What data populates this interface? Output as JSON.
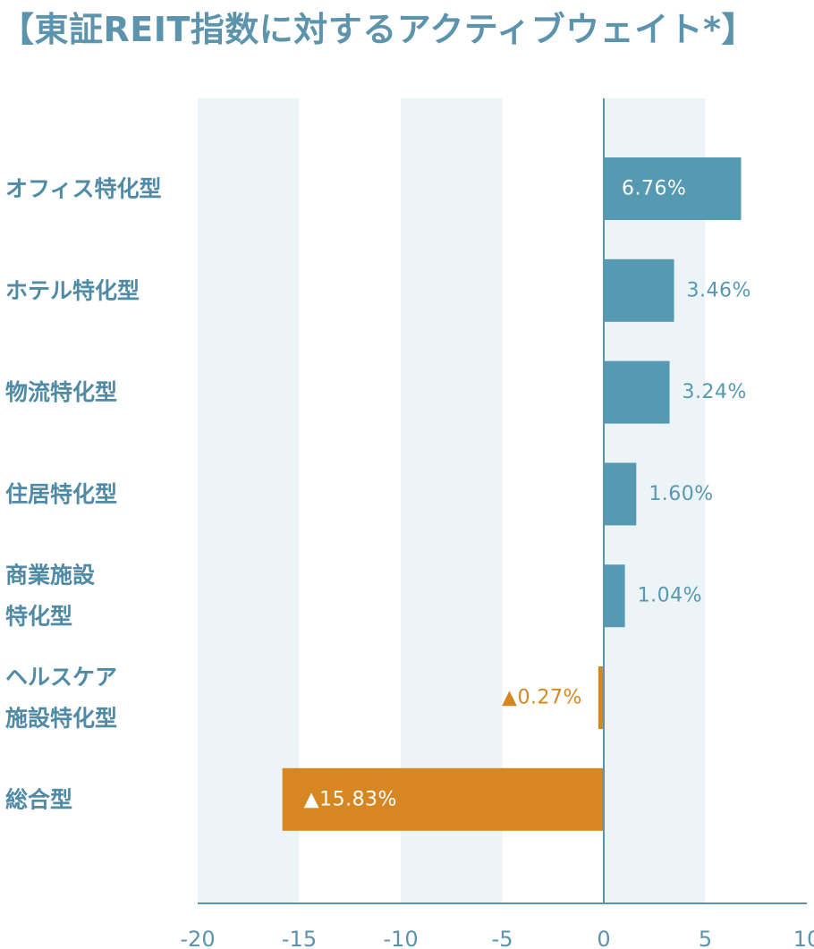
{
  "title": "【東証REIT指数に対するアクティブウェイト*】",
  "chart_data": {
    "type": "bar",
    "orientation": "horizontal",
    "title": "【東証REIT指数に対するアクティブウェイト*】",
    "xlim": [
      -20,
      10
    ],
    "x_ticks": [
      "-20",
      "-15",
      "-10",
      "-5",
      "0",
      "5",
      "10"
    ],
    "categories": [
      [
        "オフィス特化型"
      ],
      [
        "ホテル特化型"
      ],
      [
        "物流特化型"
      ],
      [
        "住居特化型"
      ],
      [
        "商業施設",
        "特化型"
      ],
      [
        "ヘルスケア",
        "施設特化型"
      ],
      [
        "総合型"
      ]
    ],
    "values": [
      6.76,
      3.46,
      3.24,
      1.6,
      1.04,
      -0.27,
      -15.83
    ],
    "labels": [
      "6.76%",
      "3.46%",
      "3.24%",
      "1.60%",
      "1.04%",
      "▲0.27%",
      "▲15.83%"
    ],
    "colors": {
      "positive": "#5699b3",
      "negative": "#d68722",
      "band": "#edf4f7",
      "axis": "#5c93ad",
      "category_text": "#4f8aa6"
    },
    "background_bands": "alternating"
  }
}
